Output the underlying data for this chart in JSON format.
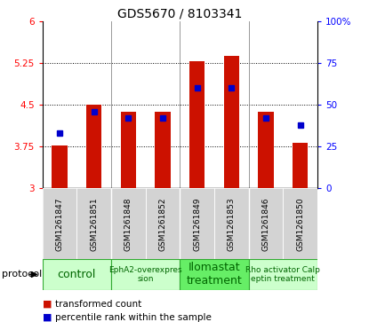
{
  "title": "GDS5670 / 8103341",
  "samples": [
    "GSM1261847",
    "GSM1261851",
    "GSM1261848",
    "GSM1261852",
    "GSM1261849",
    "GSM1261853",
    "GSM1261846",
    "GSM1261850"
  ],
  "transformed_counts": [
    3.77,
    4.5,
    4.38,
    4.38,
    5.28,
    5.38,
    4.38,
    3.82
  ],
  "percentile_ranks": [
    33,
    46,
    42,
    42,
    60,
    60,
    42,
    38
  ],
  "y_min": 3.0,
  "y_max": 6.0,
  "y_ticks": [
    3.0,
    3.75,
    4.5,
    5.25,
    6.0
  ],
  "y_tick_labels": [
    "3",
    "3.75",
    "4.5",
    "5.25",
    "6"
  ],
  "y2_ticks": [
    0,
    25,
    50,
    75,
    100
  ],
  "y2_tick_labels": [
    "0",
    "25",
    "50",
    "75",
    "100%"
  ],
  "bar_color": "#cc1100",
  "dot_color": "#0000cc",
  "group_xranges": [
    [
      0,
      1,
      "control",
      "#ccffcc",
      9
    ],
    [
      2,
      3,
      "EphA2-overexpres\nsion",
      "#ccffcc",
      6.5
    ],
    [
      4,
      5,
      "Ilomastat\ntreatment",
      "#66ee66",
      9
    ],
    [
      6,
      7,
      "Rho activator Calp\neptin treatment",
      "#ccffcc",
      6.5
    ]
  ],
  "group_boundaries": [
    1.5,
    3.5,
    5.5
  ],
  "bar_width": 0.45,
  "plot_bg": "#ffffff",
  "sample_bg": "#d3d3d3",
  "grid_color": "#000000",
  "legend_red_label": "transformed count",
  "legend_blue_label": "percentile rank within the sample",
  "protocol_label": "protocol"
}
